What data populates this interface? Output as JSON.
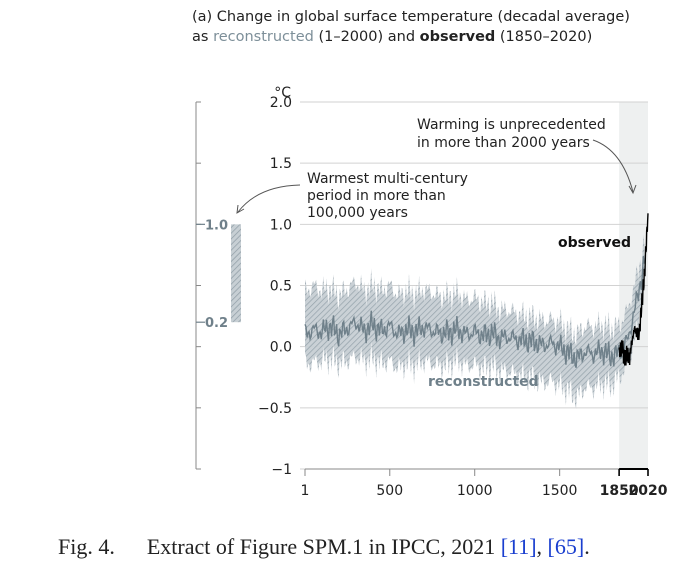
{
  "title": {
    "line1": "(a) Change in global surface temperature (decadal average)",
    "line2_prefix": "as ",
    "reconstructed_word": "reconstructed",
    "line2_mid": " (1–2000) and ",
    "observed_word": "observed",
    "line2_suffix": " (1850–2020)"
  },
  "unit_label": "°C",
  "annotations": {
    "unprecedented_1": "Warming is unprecedented",
    "unprecedented_2": "in more than 2000 years",
    "multicentury_1": "Warmest multi-century",
    "multicentury_2": "period in more than",
    "multicentury_3": "100,000 years",
    "observed_label": "observed",
    "reconstructed_label": "reconstructed"
  },
  "caption": {
    "prefix": "Fig. 4.",
    "text": "Extract of Figure SPM.1 in IPCC, 2021 ",
    "ref1": "[11]",
    "sep": ", ",
    "ref2": "[65]",
    "end": "."
  },
  "chart_data": {
    "type": "line",
    "x_range": [
      1,
      2020
    ],
    "ylim": [
      -1.0,
      2.0
    ],
    "y_ticks": [
      "2.0",
      "1.5",
      "1.0",
      "0.5",
      "0.0",
      "−0.5",
      "−1"
    ],
    "x_ticks": [
      "1",
      "500",
      "1000",
      "1500",
      "1850",
      "2020"
    ],
    "x_tick_values": [
      1,
      500,
      1000,
      1500,
      1850,
      2020
    ],
    "colors": {
      "reconstructed": "#6f808a",
      "band": "#b9c3c9",
      "observed": "#000000",
      "shade": "#eef0f0"
    },
    "paleo_bar": {
      "low": 0.2,
      "high": 1.0,
      "low_label": "0.2",
      "high_label": "1.0"
    },
    "series": [
      {
        "name": "reconstructed",
        "x": [
          1,
          50,
          100,
          150,
          200,
          250,
          300,
          350,
          400,
          450,
          500,
          550,
          600,
          650,
          700,
          750,
          800,
          850,
          900,
          950,
          1000,
          1050,
          1100,
          1150,
          1200,
          1250,
          1300,
          1350,
          1400,
          1450,
          1500,
          1550,
          1600,
          1650,
          1700,
          1750,
          1800,
          1850,
          1900,
          1950,
          2000
        ],
        "y": [
          0.1,
          0.14,
          0.12,
          0.17,
          0.1,
          0.15,
          0.2,
          0.13,
          0.18,
          0.13,
          0.17,
          0.1,
          0.14,
          0.12,
          0.16,
          0.13,
          0.11,
          0.12,
          0.14,
          0.1,
          0.12,
          0.09,
          0.11,
          0.07,
          0.08,
          0.06,
          0.05,
          0.04,
          0.01,
          0.03,
          0.0,
          -0.05,
          -0.1,
          -0.04,
          -0.06,
          -0.03,
          -0.08,
          -0.05,
          0.05,
          0.35,
          0.7
        ],
        "band_upper": [
          0.45,
          0.5,
          0.46,
          0.48,
          0.42,
          0.47,
          0.53,
          0.46,
          0.5,
          0.46,
          0.5,
          0.42,
          0.46,
          0.43,
          0.47,
          0.44,
          0.41,
          0.42,
          0.44,
          0.38,
          0.4,
          0.36,
          0.36,
          0.3,
          0.3,
          0.27,
          0.25,
          0.24,
          0.21,
          0.22,
          0.2,
          0.14,
          0.1,
          0.17,
          0.16,
          0.18,
          0.15,
          0.17,
          0.3,
          0.55,
          0.85
        ],
        "band_lower": [
          -0.15,
          -0.13,
          -0.12,
          -0.1,
          -0.14,
          -0.12,
          -0.08,
          -0.12,
          -0.1,
          -0.14,
          -0.12,
          -0.18,
          -0.14,
          -0.16,
          -0.12,
          -0.14,
          -0.16,
          -0.15,
          -0.12,
          -0.16,
          -0.15,
          -0.18,
          -0.16,
          -0.2,
          -0.2,
          -0.23,
          -0.25,
          -0.26,
          -0.3,
          -0.28,
          -0.32,
          -0.36,
          -0.42,
          -0.33,
          -0.34,
          -0.3,
          -0.32,
          -0.25,
          -0.15,
          0.1,
          0.5
        ]
      },
      {
        "name": "observed",
        "x": [
          1850,
          1860,
          1870,
          1880,
          1890,
          1900,
          1910,
          1920,
          1930,
          1940,
          1950,
          1960,
          1970,
          1980,
          1990,
          2000,
          2010,
          2020
        ],
        "y": [
          -0.05,
          -0.02,
          0.0,
          -0.1,
          -0.08,
          -0.05,
          -0.12,
          0.0,
          0.07,
          0.15,
          0.12,
          0.1,
          0.12,
          0.3,
          0.45,
          0.6,
          0.85,
          1.09
        ]
      }
    ]
  }
}
